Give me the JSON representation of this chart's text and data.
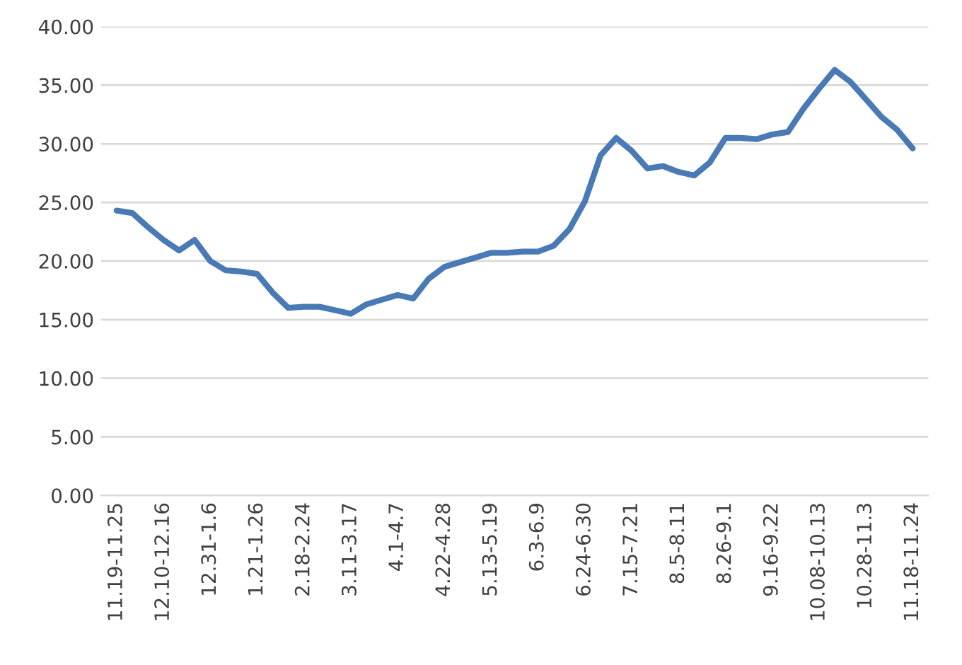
{
  "chart_data": {
    "type": "line",
    "categories": [
      "11.19-11.25",
      null,
      null,
      "12.10-12.16",
      null,
      null,
      "12.31-1.6",
      null,
      null,
      "1.21-1.26",
      null,
      null,
      "2.18-2.24",
      null,
      null,
      "3.11-3.17",
      null,
      null,
      "4.1-4.7",
      null,
      null,
      "4.22-4.28",
      null,
      null,
      "5.13-5.19",
      null,
      null,
      "6.3-6.9",
      null,
      null,
      "6.24-6.30",
      null,
      null,
      "7.15-7.21",
      null,
      null,
      "8.5-8.11",
      null,
      null,
      "8.26-9.1",
      null,
      null,
      "9.16-9.22",
      null,
      null,
      "10.08-10.13",
      null,
      null,
      "10.28-11.3",
      null,
      null,
      "11.18-11.24"
    ],
    "series": [
      {
        "color": "#4a7ab5",
        "values": [
          24.3,
          24.1,
          22.9,
          21.8,
          20.9,
          21.8,
          20.0,
          19.2,
          19.1,
          18.9,
          17.3,
          16.0,
          16.1,
          16.1,
          15.8,
          15.5,
          16.3,
          16.7,
          17.1,
          16.8,
          18.5,
          19.5,
          19.9,
          20.3,
          20.7,
          20.7,
          20.8,
          20.8,
          21.3,
          22.7,
          25.1,
          29.0,
          30.5,
          29.4,
          27.9,
          28.1,
          27.6,
          27.3,
          28.4,
          30.5,
          30.5,
          30.4,
          30.8,
          31.0,
          33.0,
          34.7,
          36.3,
          35.3,
          33.8,
          32.3,
          31.2,
          29.6
        ]
      }
    ],
    "ylim": [
      0,
      40
    ],
    "yticks": [
      {
        "value": 0,
        "label": "0.00"
      },
      {
        "value": 5,
        "label": "5.00"
      },
      {
        "value": 10,
        "label": "10.00"
      },
      {
        "value": 15,
        "label": "15.00"
      },
      {
        "value": 20,
        "label": "20.00"
      },
      {
        "value": 25,
        "label": "25.00"
      },
      {
        "value": 30,
        "label": "30.00"
      },
      {
        "value": 35,
        "label": "35.00"
      },
      {
        "value": 40,
        "label": "40.00"
      }
    ],
    "grid": "y",
    "marker": "none",
    "line_style": "solid"
  }
}
